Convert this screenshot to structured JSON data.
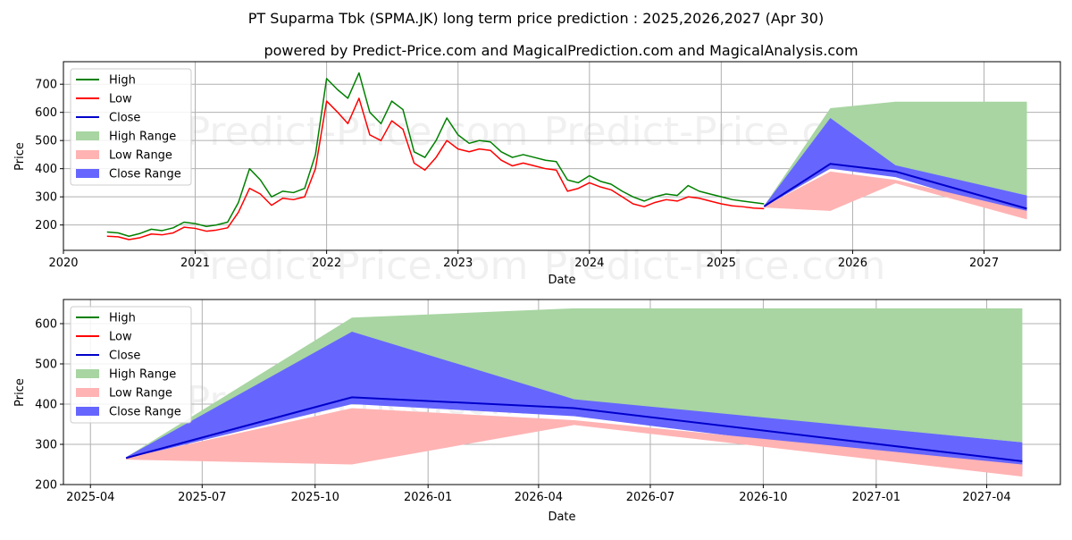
{
  "title": "PT Suparma Tbk (SPMA.JK) long term price prediction : 2025,2026,2027 (Apr 30)",
  "subtitle": "powered by Predict-Price.com and MagicalPrediction.com and MagicalAnalysis.com",
  "watermark": "Predict-Price.com",
  "colors": {
    "high": "#008000",
    "low": "#ff0000",
    "close": "#0000cc",
    "high_range": "#a8d5a2",
    "low_range": "#ffb3b3",
    "close_range": "#6666ff",
    "grid": "#b0b0b0"
  },
  "chart_data": [
    {
      "type": "line",
      "xlabel": "Date",
      "ylabel": "Price",
      "xlim": [
        "2020-01-01",
        "2027-08-01"
      ],
      "ylim": [
        110,
        780
      ],
      "x_ticks": [
        "2020",
        "2021",
        "2022",
        "2023",
        "2024",
        "2025",
        "2026",
        "2027"
      ],
      "y_ticks": [
        200,
        300,
        400,
        500,
        600,
        700
      ],
      "grid": true,
      "legend_position": "upper-left",
      "legend": [
        "High",
        "Low",
        "Close",
        "High Range",
        "Low Range",
        "Close Range"
      ],
      "history": {
        "x": [
          "2020-05-01",
          "2020-06-01",
          "2020-07-01",
          "2020-08-01",
          "2020-09-01",
          "2020-10-01",
          "2020-11-01",
          "2020-12-01",
          "2021-01-01",
          "2021-02-01",
          "2021-03-01",
          "2021-04-01",
          "2021-05-01",
          "2021-06-01",
          "2021-07-01",
          "2021-08-01",
          "2021-09-01",
          "2021-10-01",
          "2021-11-01",
          "2021-12-01",
          "2022-01-01",
          "2022-02-01",
          "2022-03-01",
          "2022-04-01",
          "2022-05-01",
          "2022-06-01",
          "2022-07-01",
          "2022-08-01",
          "2022-09-01",
          "2022-10-01",
          "2022-11-01",
          "2022-12-01",
          "2023-01-01",
          "2023-02-01",
          "2023-03-01",
          "2023-04-01",
          "2023-05-01",
          "2023-06-01",
          "2023-07-01",
          "2023-08-01",
          "2023-09-01",
          "2023-10-01",
          "2023-11-01",
          "2023-12-01",
          "2024-01-01",
          "2024-02-01",
          "2024-03-01",
          "2024-04-01",
          "2024-05-01",
          "2024-06-01",
          "2024-07-01",
          "2024-08-01",
          "2024-09-01",
          "2024-10-01",
          "2024-11-01",
          "2024-12-01",
          "2025-01-01",
          "2025-02-01",
          "2025-03-01",
          "2025-04-01",
          "2025-04-30"
        ],
        "high": [
          175,
          172,
          160,
          170,
          185,
          180,
          190,
          210,
          205,
          195,
          200,
          210,
          280,
          400,
          360,
          300,
          320,
          315,
          330,
          450,
          720,
          680,
          650,
          740,
          600,
          560,
          640,
          610,
          460,
          440,
          500,
          580,
          520,
          490,
          500,
          495,
          460,
          440,
          450,
          440,
          430,
          425,
          360,
          350,
          375,
          355,
          345,
          320,
          300,
          285,
          300,
          310,
          305,
          340,
          320,
          310,
          300,
          290,
          285,
          280,
          275
        ],
        "low": [
          160,
          158,
          148,
          155,
          168,
          165,
          172,
          192,
          188,
          178,
          182,
          190,
          245,
          330,
          310,
          270,
          295,
          290,
          300,
          400,
          640,
          600,
          560,
          650,
          520,
          500,
          570,
          540,
          420,
          395,
          440,
          500,
          470,
          460,
          470,
          465,
          430,
          410,
          420,
          410,
          400,
          395,
          320,
          330,
          350,
          335,
          325,
          300,
          275,
          265,
          280,
          290,
          285,
          300,
          295,
          285,
          275,
          268,
          265,
          260,
          258
        ],
        "close": [
          168,
          165,
          154,
          162,
          176,
          172,
          181,
          201,
          196,
          186,
          191,
          200,
          262,
          365,
          335,
          285,
          307,
          302,
          315,
          425,
          680,
          640,
          605,
          695,
          560,
          530,
          605,
          575,
          440,
          418,
          470,
          540,
          495,
          475,
          485,
          480,
          445,
          425,
          435,
          425,
          415,
          410,
          340,
          340,
          362,
          345,
          335,
          310,
          287,
          275,
          290,
          300,
          295,
          320,
          307,
          297,
          287,
          279,
          275,
          270,
          266
        ]
      },
      "forecast_x": [
        "2025-04-30",
        "2025-10-31",
        "2026-04-30",
        "2027-04-30"
      ],
      "high_range": {
        "upper": [
          268,
          615,
          638,
          638
        ],
        "lower": [
          268,
          400,
          410,
          305
        ]
      },
      "low_range": {
        "upper": [
          266,
          390,
          360,
          250
        ],
        "lower": [
          262,
          250,
          348,
          220
        ]
      },
      "close_range": {
        "upper": [
          268,
          580,
          412,
          305
        ],
        "lower": [
          264,
          400,
          370,
          230
        ]
      },
      "close_forecast": [
        266,
        417,
        390,
        258
      ]
    },
    {
      "type": "line",
      "xlabel": "Date",
      "ylabel": "Price",
      "xlim": [
        "2025-03-10",
        "2027-05-31"
      ],
      "ylim": [
        200,
        660
      ],
      "x_ticks": [
        "2025-04",
        "2025-07",
        "2025-10",
        "2026-01",
        "2026-04",
        "2026-07",
        "2026-10",
        "2027-01",
        "2027-04"
      ],
      "y_ticks": [
        200,
        300,
        400,
        500,
        600
      ],
      "grid": true,
      "legend_position": "upper-left",
      "legend": [
        "High",
        "Low",
        "Close",
        "High Range",
        "Low Range",
        "Close Range"
      ],
      "forecast_x": [
        "2025-04-30",
        "2025-10-31",
        "2026-04-30",
        "2027-04-30"
      ],
      "high_range": {
        "upper": [
          268,
          615,
          638,
          638
        ],
        "lower": [
          268,
          400,
          410,
          305
        ]
      },
      "low_range": {
        "upper": [
          266,
          390,
          360,
          250
        ],
        "lower": [
          262,
          250,
          348,
          220
        ]
      },
      "close_range": {
        "upper": [
          268,
          580,
          412,
          305
        ],
        "lower": [
          264,
          400,
          370,
          230
        ]
      },
      "close_forecast": [
        266,
        417,
        390,
        258
      ]
    }
  ]
}
